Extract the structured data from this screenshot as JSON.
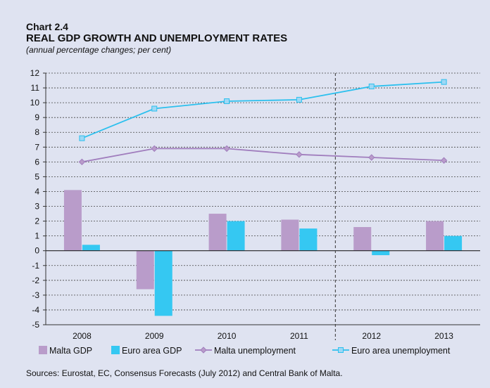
{
  "header": {
    "chart_label": "Chart 2.4",
    "title": "REAL GDP GROWTH AND UNEMPLOYMENT RATES",
    "subtitle": "(annual percentage changes; per cent)"
  },
  "source": "Sources: Eurostat, EC, Consensus Forecasts (July 2012) and Central Bank of Malta.",
  "colors": {
    "malta": "#b99cca",
    "euro": "#35c8f2",
    "malta_line": "#a07dbd",
    "euro_line": "#2cc0ee",
    "background": "#dfe3f1"
  },
  "chart_data": {
    "type": "bar",
    "title": "REAL GDP GROWTH AND UNEMPLOYMENT RATES",
    "subtitle": "(annual percentage changes; per cent)",
    "categories": [
      "2008",
      "2009",
      "2010",
      "2011",
      "2012",
      "2013"
    ],
    "ylim": [
      -5,
      12
    ],
    "yticks": [
      12,
      11,
      10,
      9,
      8,
      7,
      6,
      5,
      4,
      3,
      2,
      1,
      0,
      -1,
      -2,
      -3,
      -4,
      -5
    ],
    "grid": "horizontal dashed",
    "forecast_divider_after": "2011",
    "legend_position": "bottom",
    "series": [
      {
        "name": "Malta GDP",
        "kind": "bar",
        "values": [
          4.1,
          -2.6,
          2.5,
          2.1,
          1.6,
          2.0
        ]
      },
      {
        "name": "Euro area GDP",
        "kind": "bar",
        "values": [
          0.4,
          -4.4,
          2.0,
          1.5,
          -0.3,
          1.0
        ]
      },
      {
        "name": "Malta unemployment",
        "kind": "line",
        "marker": "diamond",
        "values": [
          6.0,
          6.9,
          6.9,
          6.5,
          6.3,
          6.1
        ]
      },
      {
        "name": "Euro area unemployment",
        "kind": "line",
        "marker": "square",
        "values": [
          7.6,
          9.6,
          10.1,
          10.2,
          11.1,
          11.4
        ]
      }
    ]
  }
}
